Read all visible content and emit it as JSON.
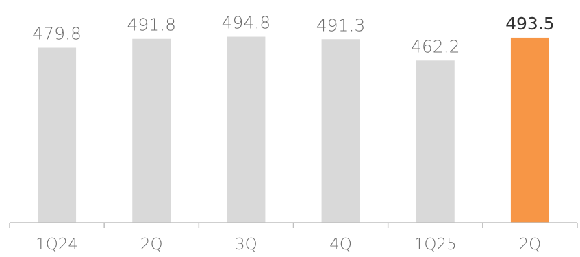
{
  "chart_data": {
    "type": "bar",
    "categories": [
      "1Q24",
      "2Q",
      "3Q",
      "4Q",
      "1Q25",
      "2Q"
    ],
    "values": [
      479.8,
      491.8,
      494.8,
      491.3,
      462.2,
      493.5
    ],
    "value_labels": [
      "479.8",
      "491.8",
      "494.8",
      "491.3",
      "462.2",
      "493.5"
    ],
    "highlight_index": 5,
    "title": "",
    "xlabel": "",
    "ylabel": "",
    "ylim": [
      240,
      500
    ],
    "grid": false,
    "colors": {
      "bar": "#d9d9d9",
      "highlight": "#f79646",
      "axis": "#bfbfbf"
    }
  }
}
